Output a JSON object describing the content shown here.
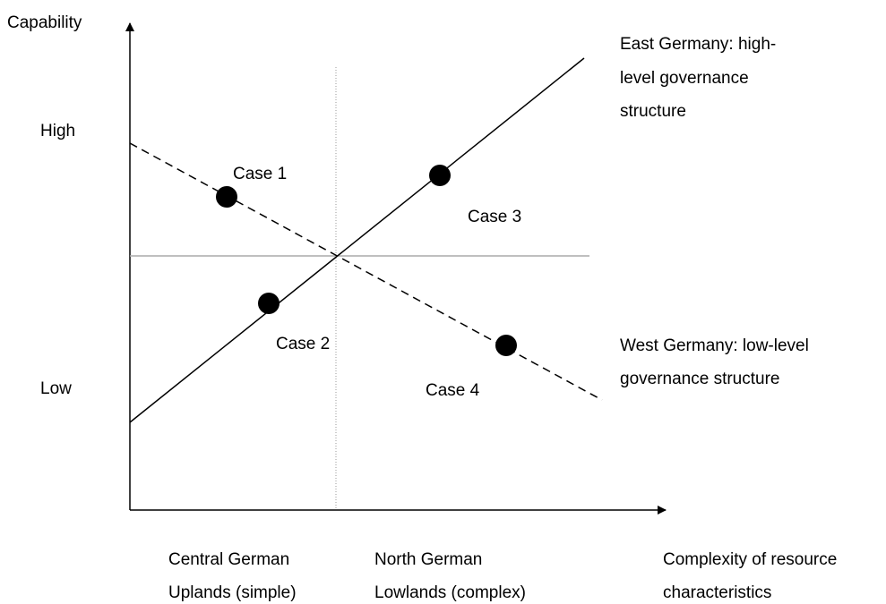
{
  "axes": {
    "y_label": "Capability",
    "high": "High",
    "low": "Low",
    "x_categories": [
      [
        "Central German",
        "Uplands (simple)"
      ],
      [
        "North German",
        "Lowlands (complex)"
      ]
    ],
    "x_label": [
      "Complexity of resource",
      "characteristics"
    ]
  },
  "lines": [
    {
      "label": [
        "East Germany: high-",
        "level governance",
        "structure"
      ]
    },
    {
      "label": [
        "West Germany: low-level",
        "governance structure"
      ]
    }
  ],
  "cases": [
    "Case 1",
    "Case 2",
    "Case 3",
    "Case 4"
  ]
}
